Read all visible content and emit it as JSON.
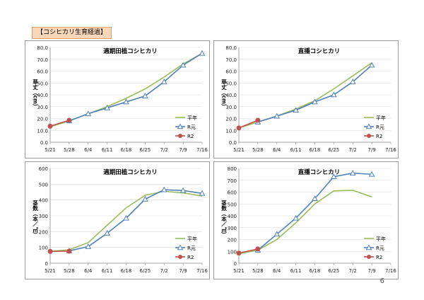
{
  "header": {
    "label": "【コシヒカリ生育経過】"
  },
  "page_number": "6",
  "colors": {
    "heinen": "#9bbb59",
    "r_gen": "#4f81bd",
    "r2": "#c0504d"
  },
  "chart_data": [
    {
      "type": "line",
      "title": "適期田植コシヒカリ",
      "ylabel": "草丈（cm）",
      "categories": [
        "5/21",
        "5/28",
        "6/4",
        "6/11",
        "6/18",
        "6/25",
        "7/2",
        "7/9",
        "7/16"
      ],
      "ylim": [
        0,
        80
      ],
      "yticks": [
        "0.0",
        "10.0",
        "20.0",
        "30.0",
        "40.0",
        "50.0",
        "60.0",
        "70.0",
        "80.0"
      ],
      "legend_position": "right",
      "series": [
        {
          "name": "平年",
          "values": [
            13,
            18,
            24,
            30,
            37,
            45,
            55,
            66,
            75
          ]
        },
        {
          "name": "R元",
          "values": [
            null,
            18,
            24,
            29,
            34,
            39,
            51,
            65,
            75
          ]
        },
        {
          "name": "R2",
          "values": [
            13.5,
            18.5,
            null,
            null,
            null,
            null,
            null,
            null,
            null
          ]
        }
      ]
    },
    {
      "type": "line",
      "title": "直播コシヒカリ",
      "ylabel": "草丈（cm）",
      "categories": [
        "5/21",
        "5/28",
        "6/4",
        "6/11",
        "6/18",
        "6/25",
        "7/2",
        "7/9",
        "7/16"
      ],
      "ylim": [
        0,
        80
      ],
      "yticks": [
        "0.0",
        "10.0",
        "20.0",
        "30.0",
        "40.0",
        "50.0",
        "60.0",
        "70.0",
        "80.0"
      ],
      "legend_position": "right",
      "series": [
        {
          "name": "平年",
          "values": [
            12,
            17,
            22,
            28,
            35,
            45,
            56,
            67,
            null
          ]
        },
        {
          "name": "R元",
          "values": [
            null,
            17,
            22,
            27,
            34,
            40,
            51,
            65,
            null
          ]
        },
        {
          "name": "R2",
          "values": [
            12,
            18.5,
            null,
            null,
            null,
            null,
            null,
            null,
            null
          ]
        }
      ]
    },
    {
      "type": "line",
      "title": "適期田植コシヒカリ",
      "ylabel": "茎数（本／㎡）",
      "categories": [
        "5/21",
        "5/28",
        "6/4",
        "6/11",
        "6/18",
        "6/25",
        "7/2",
        "7/9",
        "7/16"
      ],
      "ylim": [
        0,
        600
      ],
      "yticks": [
        "0",
        "100",
        "200",
        "300",
        "400",
        "500",
        "600"
      ],
      "legend_position": "right",
      "series": [
        {
          "name": "平年",
          "values": [
            75,
            85,
            130,
            240,
            350,
            430,
            455,
            445,
            425
          ]
        },
        {
          "name": "R元",
          "values": [
            null,
            78,
            105,
            190,
            285,
            405,
            465,
            460,
            442
          ]
        },
        {
          "name": "R2",
          "values": [
            75,
            76,
            null,
            null,
            null,
            null,
            null,
            null,
            null
          ]
        }
      ]
    },
    {
      "type": "line",
      "title": "直播コシヒカリ",
      "ylabel": "茎数（本／㎡）",
      "categories": [
        "5/21",
        "5/28",
        "6/4",
        "6/11",
        "6/18",
        "6/25",
        "7/2",
        "7/9",
        "7/16"
      ],
      "ylim": [
        0,
        800
      ],
      "yticks": [
        "0",
        "100",
        "200",
        "300",
        "400",
        "500",
        "600",
        "700",
        "800"
      ],
      "legend_position": "right",
      "series": [
        {
          "name": "平年",
          "values": [
            80,
            110,
            200,
            340,
            500,
            610,
            615,
            560,
            null
          ]
        },
        {
          "name": "R元",
          "values": [
            null,
            110,
            245,
            380,
            545,
            730,
            760,
            750,
            null
          ]
        },
        {
          "name": "R2",
          "values": [
            85,
            120,
            null,
            null,
            null,
            null,
            null,
            null,
            null
          ]
        }
      ]
    }
  ]
}
